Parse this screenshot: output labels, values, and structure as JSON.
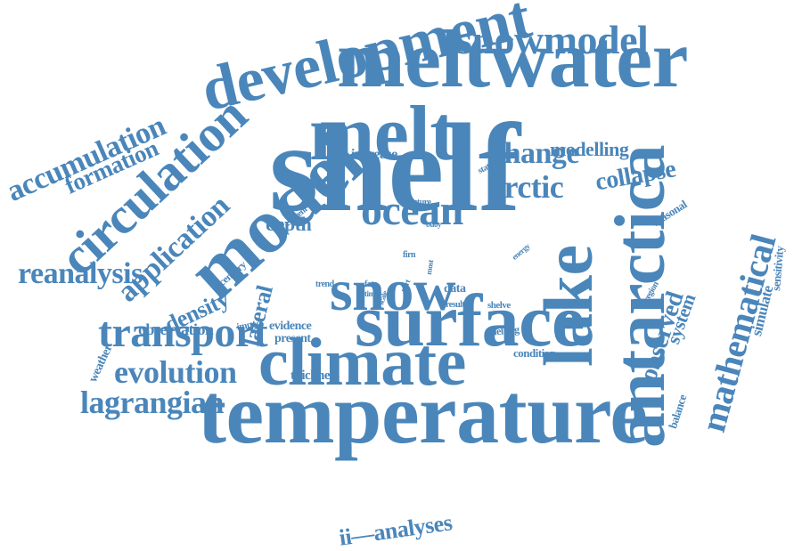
{
  "colors": {
    "word": "#4a86ba",
    "background": "#ffffff"
  },
  "words": [
    {
      "text": "shelf"
    },
    {
      "text": "meltwater"
    },
    {
      "text": "temperature"
    },
    {
      "text": "development"
    },
    {
      "text": "surface"
    },
    {
      "text": "climate"
    },
    {
      "text": "model"
    },
    {
      "text": "melt"
    },
    {
      "text": "antarctica"
    },
    {
      "text": "snow"
    },
    {
      "text": "lake"
    },
    {
      "text": "circulation"
    },
    {
      "text": "snowmodel"
    },
    {
      "text": "transport"
    },
    {
      "text": "ocean"
    },
    {
      "text": "mathematical"
    },
    {
      "text": "accumulation"
    },
    {
      "text": "lagrangian"
    },
    {
      "text": "evolution"
    },
    {
      "text": "application"
    },
    {
      "text": "reanalysis"
    },
    {
      "text": "change"
    },
    {
      "text": "arctic"
    },
    {
      "text": "formation"
    },
    {
      "text": "collapse"
    },
    {
      "text": "observed"
    },
    {
      "text": "ii—analyses"
    },
    {
      "text": "lateral"
    },
    {
      "text": "density"
    },
    {
      "text": "modelling"
    },
    {
      "text": "depth"
    },
    {
      "text": "system"
    },
    {
      "text": "observation"
    },
    {
      "text": "simulate"
    },
    {
      "text": "increase"
    },
    {
      "text": "thickness"
    },
    {
      "text": "evidence"
    },
    {
      "text": "present"
    },
    {
      "text": "condition"
    },
    {
      "text": "weather"
    },
    {
      "text": "sensitivity"
    },
    {
      "text": "balance"
    },
    {
      "text": "seasonal"
    },
    {
      "text": "melting"
    },
    {
      "text": "data"
    },
    {
      "text": "shelve"
    },
    {
      "text": "century"
    },
    {
      "text": "impact"
    },
    {
      "text": "current"
    },
    {
      "text": "future"
    },
    {
      "text": "station"
    },
    {
      "text": "energy"
    },
    {
      "text": "region"
    },
    {
      "text": "buoy"
    },
    {
      "text": "firn"
    },
    {
      "text": "most"
    },
    {
      "text": "fate"
    },
    {
      "text": "time"
    },
    {
      "text": "trend"
    },
    {
      "text": "scale"
    },
    {
      "text": "part"
    },
    {
      "text": "result"
    }
  ]
}
